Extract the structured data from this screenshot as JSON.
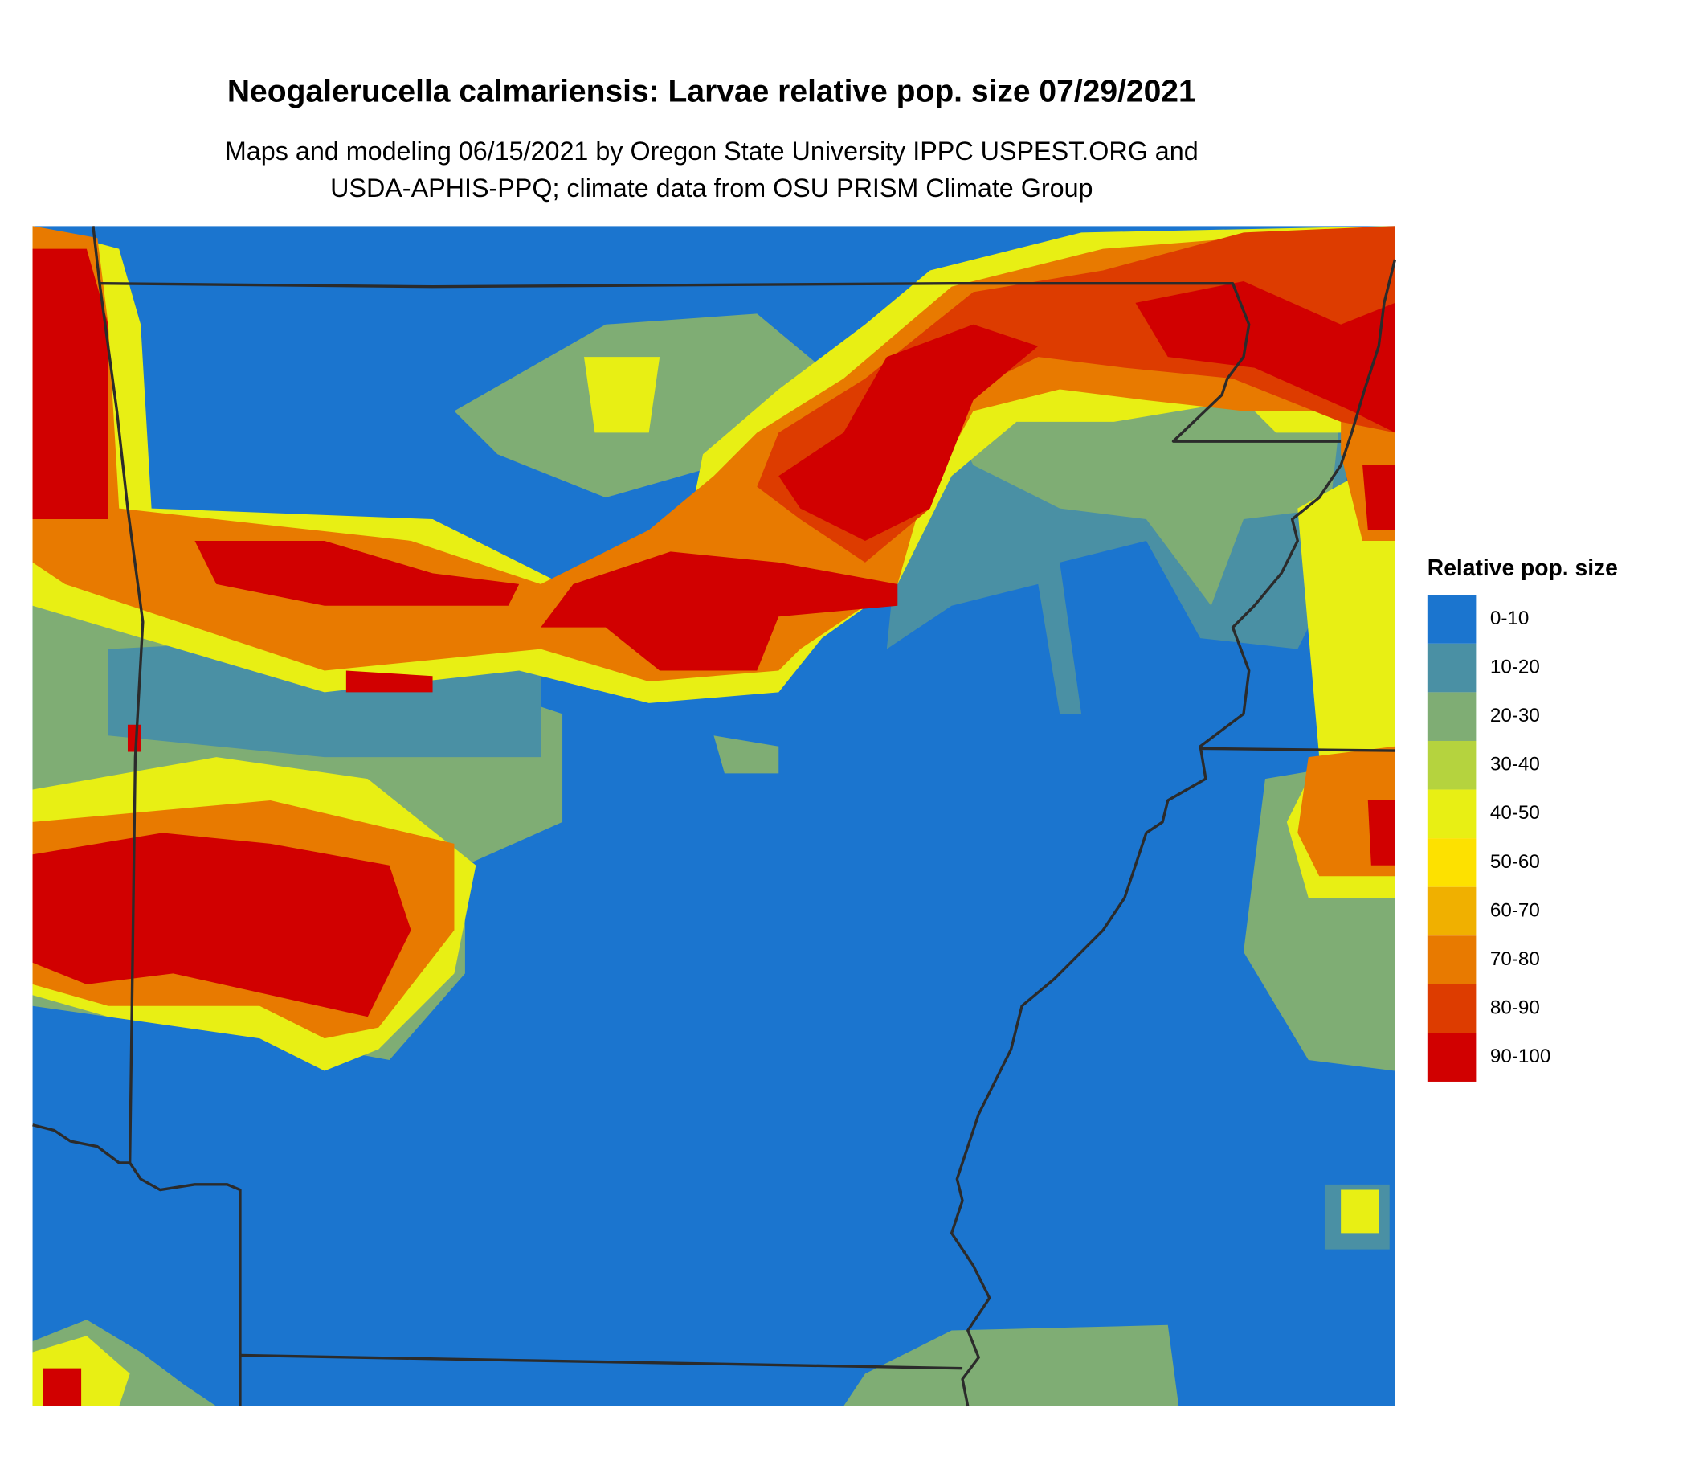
{
  "title": "Neogalerucella calmariensis: Larvae relative pop. size 07/29/2021",
  "subtitle": [
    "Maps and modeling 06/15/2021 by Oregon State University IPPC USPEST.ORG and",
    "USDA-APHIS-PPQ; climate data from OSU PRISM Climate Group"
  ],
  "legend": {
    "title": "Relative pop. size",
    "items": [
      {
        "label": "0-10",
        "color": "#1b75cf"
      },
      {
        "label": "10-20",
        "color": "#4a90a4"
      },
      {
        "label": "20-30",
        "color": "#7fad74"
      },
      {
        "label": "30-40",
        "color": "#b5d33e"
      },
      {
        "label": "40-50",
        "color": "#e8ef14"
      },
      {
        "label": "50-60",
        "color": "#fde100"
      },
      {
        "label": "60-70",
        "color": "#f0b000"
      },
      {
        "label": "70-80",
        "color": "#e87a00"
      },
      {
        "label": "80-90",
        "color": "#dd3c00"
      },
      {
        "label": "90-100",
        "color": "#d10000"
      }
    ]
  }
}
